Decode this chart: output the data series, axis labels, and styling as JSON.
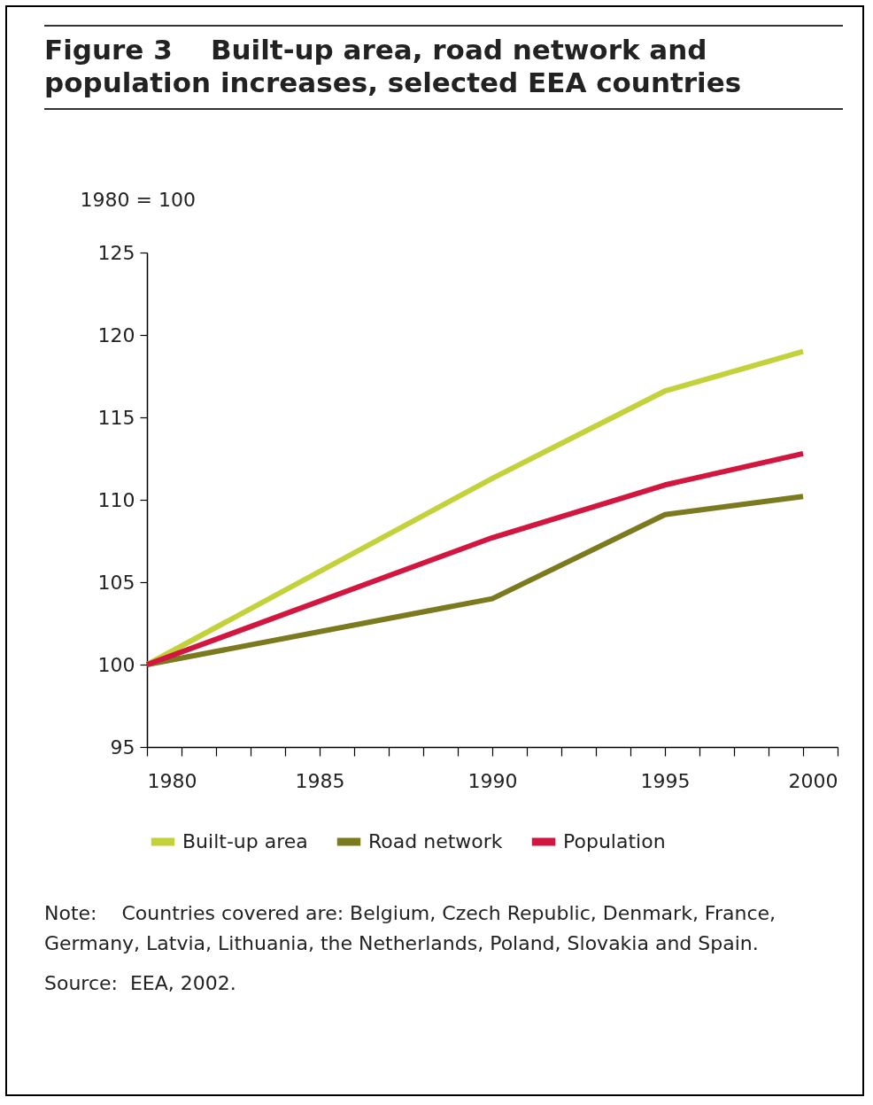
{
  "chart_data": {
    "type": "line",
    "title": "Figure 3    Built-up area, road network and population increases, selected EEA countries",
    "ylabel": "1980 = 100",
    "x": [
      1980,
      1990,
      1995,
      1999
    ],
    "series": [
      {
        "name": "Built-up area",
        "color": "#c3d13a",
        "values": [
          100,
          111.3,
          116.6,
          119.0
        ]
      },
      {
        "name": "Road network",
        "color": "#7b7a1f",
        "values": [
          100,
          104.0,
          109.1,
          110.2
        ]
      },
      {
        "name": "Population",
        "color": "#d2163f",
        "values": [
          100,
          107.7,
          110.9,
          112.8
        ]
      }
    ],
    "xlim": [
      1980,
      2000
    ],
    "xticks": [
      1980,
      {
        "value": 1981,
        "label": null
      },
      {
        "value": 1982,
        "label": null
      },
      {
        "value": 1983,
        "label": null
      },
      {
        "value": 1984,
        "label": null
      },
      1985,
      {
        "value": 1986,
        "label": null
      },
      {
        "value": 1987,
        "label": null
      },
      {
        "value": 1988,
        "label": null
      },
      {
        "value": 1989,
        "label": null
      },
      1990,
      {
        "value": 1991,
        "label": null
      },
      {
        "value": 1992,
        "label": null
      },
      {
        "value": 1993,
        "label": null
      },
      {
        "value": 1994,
        "label": null
      },
      1995,
      {
        "value": 1996,
        "label": null
      },
      {
        "value": 1997,
        "label": null
      },
      {
        "value": 1998,
        "label": null
      },
      {
        "value": 1999,
        "label": null
      },
      2000
    ],
    "ylim": [
      95,
      125
    ],
    "yticks": [
      95,
      100,
      105,
      110,
      115,
      120,
      125
    ],
    "grid": false,
    "legend": "bottom",
    "marker": "none",
    "line_style": "solid",
    "annotations": [
      "Note:    Countries covered are: Belgium, Czech Republic, Denmark, France, Germany, Latvia, Lithuania, the Netherlands, Poland, Slovakia and Spain.",
      "Source:  EEA, 2002."
    ]
  }
}
